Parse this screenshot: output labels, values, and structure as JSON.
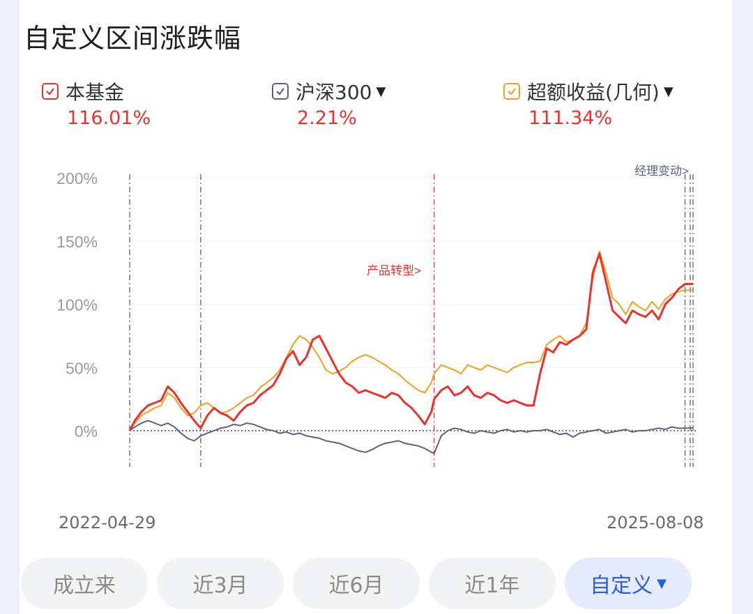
{
  "title": "自定义区间涨跌幅",
  "legend": [
    {
      "label": "本基金",
      "value": "116.01%",
      "color": "#e8322e",
      "has_dropdown": false
    },
    {
      "label": "沪深300",
      "value": "2.21%",
      "color": "#5c5f83",
      "has_dropdown": true
    },
    {
      "label": "超额收益(几何)",
      "value": "111.34%",
      "color": "#f0a020",
      "has_dropdown": true
    }
  ],
  "annotations": {
    "product_change": "产品转型>",
    "manager_change": "经理变动>"
  },
  "date_range": {
    "start": "2022-04-29",
    "end": "2025-08-08"
  },
  "tabs": [
    {
      "label": "成立来",
      "active": false
    },
    {
      "label": "近3月",
      "active": false
    },
    {
      "label": "近6月",
      "active": false
    },
    {
      "label": "近1年",
      "active": false
    },
    {
      "label": "自定义",
      "active": true
    }
  ],
  "chart_data": {
    "type": "line",
    "x_range": [
      "2022-04-29",
      "2025-08-08"
    ],
    "ylim": [
      -20,
      200
    ],
    "y_ticks": [
      0,
      50,
      100,
      150,
      200
    ],
    "y_tick_labels": [
      "0%",
      "50%",
      "100%",
      "150%",
      "200%"
    ],
    "x": [
      "2022-04-29",
      "2022-05-10",
      "2022-05-24",
      "2022-06-07",
      "2022-06-21",
      "2022-07-05",
      "2022-07-19",
      "2022-08-02",
      "2022-08-16",
      "2022-08-30",
      "2022-09-13",
      "2022-09-27",
      "2022-10-11",
      "2022-10-25",
      "2022-11-08",
      "2022-11-22",
      "2022-12-06",
      "2022-12-20",
      "2023-01-03",
      "2023-01-17",
      "2023-01-31",
      "2023-02-14",
      "2023-02-28",
      "2023-03-14",
      "2023-03-28",
      "2023-04-11",
      "2023-04-25",
      "2023-05-09",
      "2023-05-23",
      "2023-06-06",
      "2023-06-20",
      "2023-07-04",
      "2023-07-18",
      "2023-08-01",
      "2023-08-15",
      "2023-08-29",
      "2023-09-12",
      "2023-09-26",
      "2023-10-10",
      "2023-10-24",
      "2023-11-07",
      "2023-11-21",
      "2023-12-05",
      "2023-12-19",
      "2024-01-02",
      "2024-01-16",
      "2024-01-30",
      "2024-02-05",
      "2024-02-20",
      "2024-03-05",
      "2024-03-19",
      "2024-04-02",
      "2024-04-16",
      "2024-04-30",
      "2024-05-14",
      "2024-05-28",
      "2024-06-11",
      "2024-06-25",
      "2024-07-09",
      "2024-07-23",
      "2024-08-06",
      "2024-08-20",
      "2024-09-03",
      "2024-09-17",
      "2024-10-01",
      "2024-10-15",
      "2024-10-29",
      "2024-11-12",
      "2024-11-26",
      "2024-12-10",
      "2024-12-24",
      "2025-01-07",
      "2025-01-21",
      "2025-02-04",
      "2025-02-18",
      "2025-03-04",
      "2025-03-18",
      "2025-04-01",
      "2025-04-15",
      "2025-04-29",
      "2025-05-13",
      "2025-05-27",
      "2025-06-10",
      "2025-06-24",
      "2025-07-08",
      "2025-07-22",
      "2025-08-08"
    ],
    "series": [
      {
        "name": "本基金",
        "color": "#e8322e",
        "values": [
          0,
          8,
          15,
          20,
          22,
          24,
          35,
          30,
          22,
          15,
          8,
          2,
          12,
          18,
          14,
          12,
          8,
          15,
          20,
          22,
          28,
          32,
          36,
          45,
          57,
          63,
          52,
          58,
          72,
          75,
          65,
          55,
          45,
          38,
          35,
          30,
          32,
          30,
          28,
          26,
          30,
          28,
          22,
          18,
          12,
          5,
          15,
          25,
          32,
          35,
          28,
          30,
          35,
          28,
          26,
          30,
          28,
          24,
          22,
          24,
          22,
          20,
          20,
          45,
          65,
          62,
          70,
          68,
          72,
          75,
          80,
          125,
          140,
          118,
          95,
          90,
          85,
          95,
          92,
          90,
          95,
          88,
          100,
          105,
          112,
          116,
          116.01
        ]
      },
      {
        "name": "沪深300",
        "color": "#5c5f83",
        "values": [
          0,
          3,
          6,
          8,
          6,
          4,
          6,
          3,
          -2,
          -6,
          -8,
          -4,
          -2,
          0,
          2,
          3,
          5,
          4,
          6,
          5,
          3,
          1,
          0,
          -2,
          -1,
          -3,
          -2,
          -4,
          -5,
          -6,
          -8,
          -9,
          -10,
          -12,
          -14,
          -16,
          -17,
          -15,
          -12,
          -10,
          -9,
          -8,
          -10,
          -11,
          -12,
          -14,
          -17,
          -18,
          -4,
          0,
          2,
          1,
          -1,
          -2,
          0,
          -1,
          -2,
          0,
          1,
          -1,
          0,
          -1,
          0,
          0,
          1,
          -1,
          -3,
          -2,
          -5,
          -2,
          -1,
          0,
          1,
          -2,
          -1,
          0,
          1,
          -1,
          0,
          0,
          1,
          2,
          1,
          3,
          2,
          2,
          2.21
        ]
      },
      {
        "name": "超额收益(几何)",
        "color": "#f0a020",
        "values": [
          0,
          6,
          12,
          15,
          18,
          20,
          30,
          26,
          18,
          12,
          14,
          20,
          22,
          18,
          14,
          15,
          18,
          22,
          26,
          28,
          34,
          38,
          42,
          48,
          58,
          68,
          75,
          72,
          66,
          58,
          48,
          45,
          47,
          50,
          55,
          58,
          60,
          58,
          55,
          52,
          48,
          45,
          40,
          36,
          32,
          30,
          38,
          45,
          52,
          50,
          48,
          45,
          52,
          50,
          48,
          52,
          50,
          48,
          46,
          50,
          52,
          54,
          54,
          55,
          68,
          72,
          75,
          70,
          72,
          75,
          85,
          120,
          142,
          125,
          105,
          100,
          92,
          102,
          98,
          95,
          102,
          96,
          104,
          108,
          110,
          111,
          111.34
        ]
      }
    ],
    "event_lines": [
      {
        "date": "2022-04-29",
        "color": "#555"
      },
      {
        "date": "2022-09-27",
        "color": "#555"
      },
      {
        "date": "2024-02-05",
        "color": "#e8322e",
        "label": "产品转型>"
      },
      {
        "date": "2025-07-22",
        "color": "#555"
      },
      {
        "date": "2025-08-02",
        "color": "#555"
      },
      {
        "date": "2025-08-08",
        "color": "#555",
        "label": "经理变动>"
      }
    ],
    "grid": true,
    "legend_position": "top"
  }
}
